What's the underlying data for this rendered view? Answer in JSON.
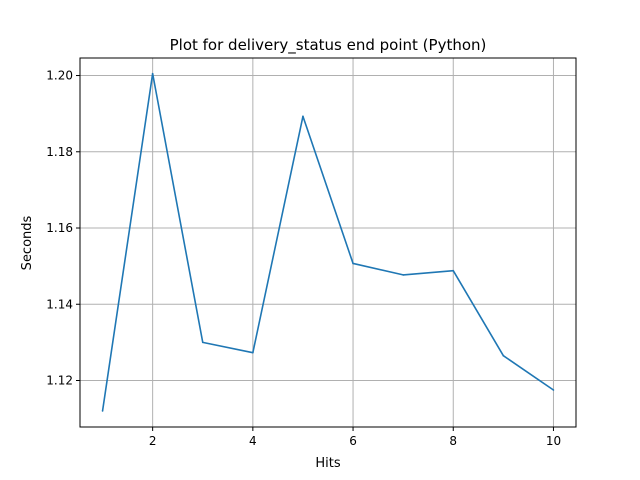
{
  "chart_data": {
    "type": "line",
    "title": "Plot for delivery_status end point (Python)",
    "xlabel": "Hits",
    "ylabel": "Seconds",
    "xlim": [
      0.55,
      10.45
    ],
    "ylim": [
      1.1078,
      1.2046
    ],
    "x_ticks": [
      2,
      4,
      6,
      8,
      10
    ],
    "y_ticks": [
      1.12,
      1.14,
      1.16,
      1.18,
      1.2
    ],
    "y_tick_labels": [
      "1.12",
      "1.14",
      "1.16",
      "1.18",
      "1.20"
    ],
    "grid": true,
    "series": [
      {
        "color": "#1f77b4",
        "x": [
          1,
          2,
          3,
          4,
          5,
          6,
          7,
          8,
          9,
          10
        ],
        "y": [
          1.112,
          1.2005,
          1.13,
          1.1273,
          1.1893,
          1.1507,
          1.1477,
          1.1488,
          1.1265,
          1.1175
        ]
      }
    ]
  }
}
